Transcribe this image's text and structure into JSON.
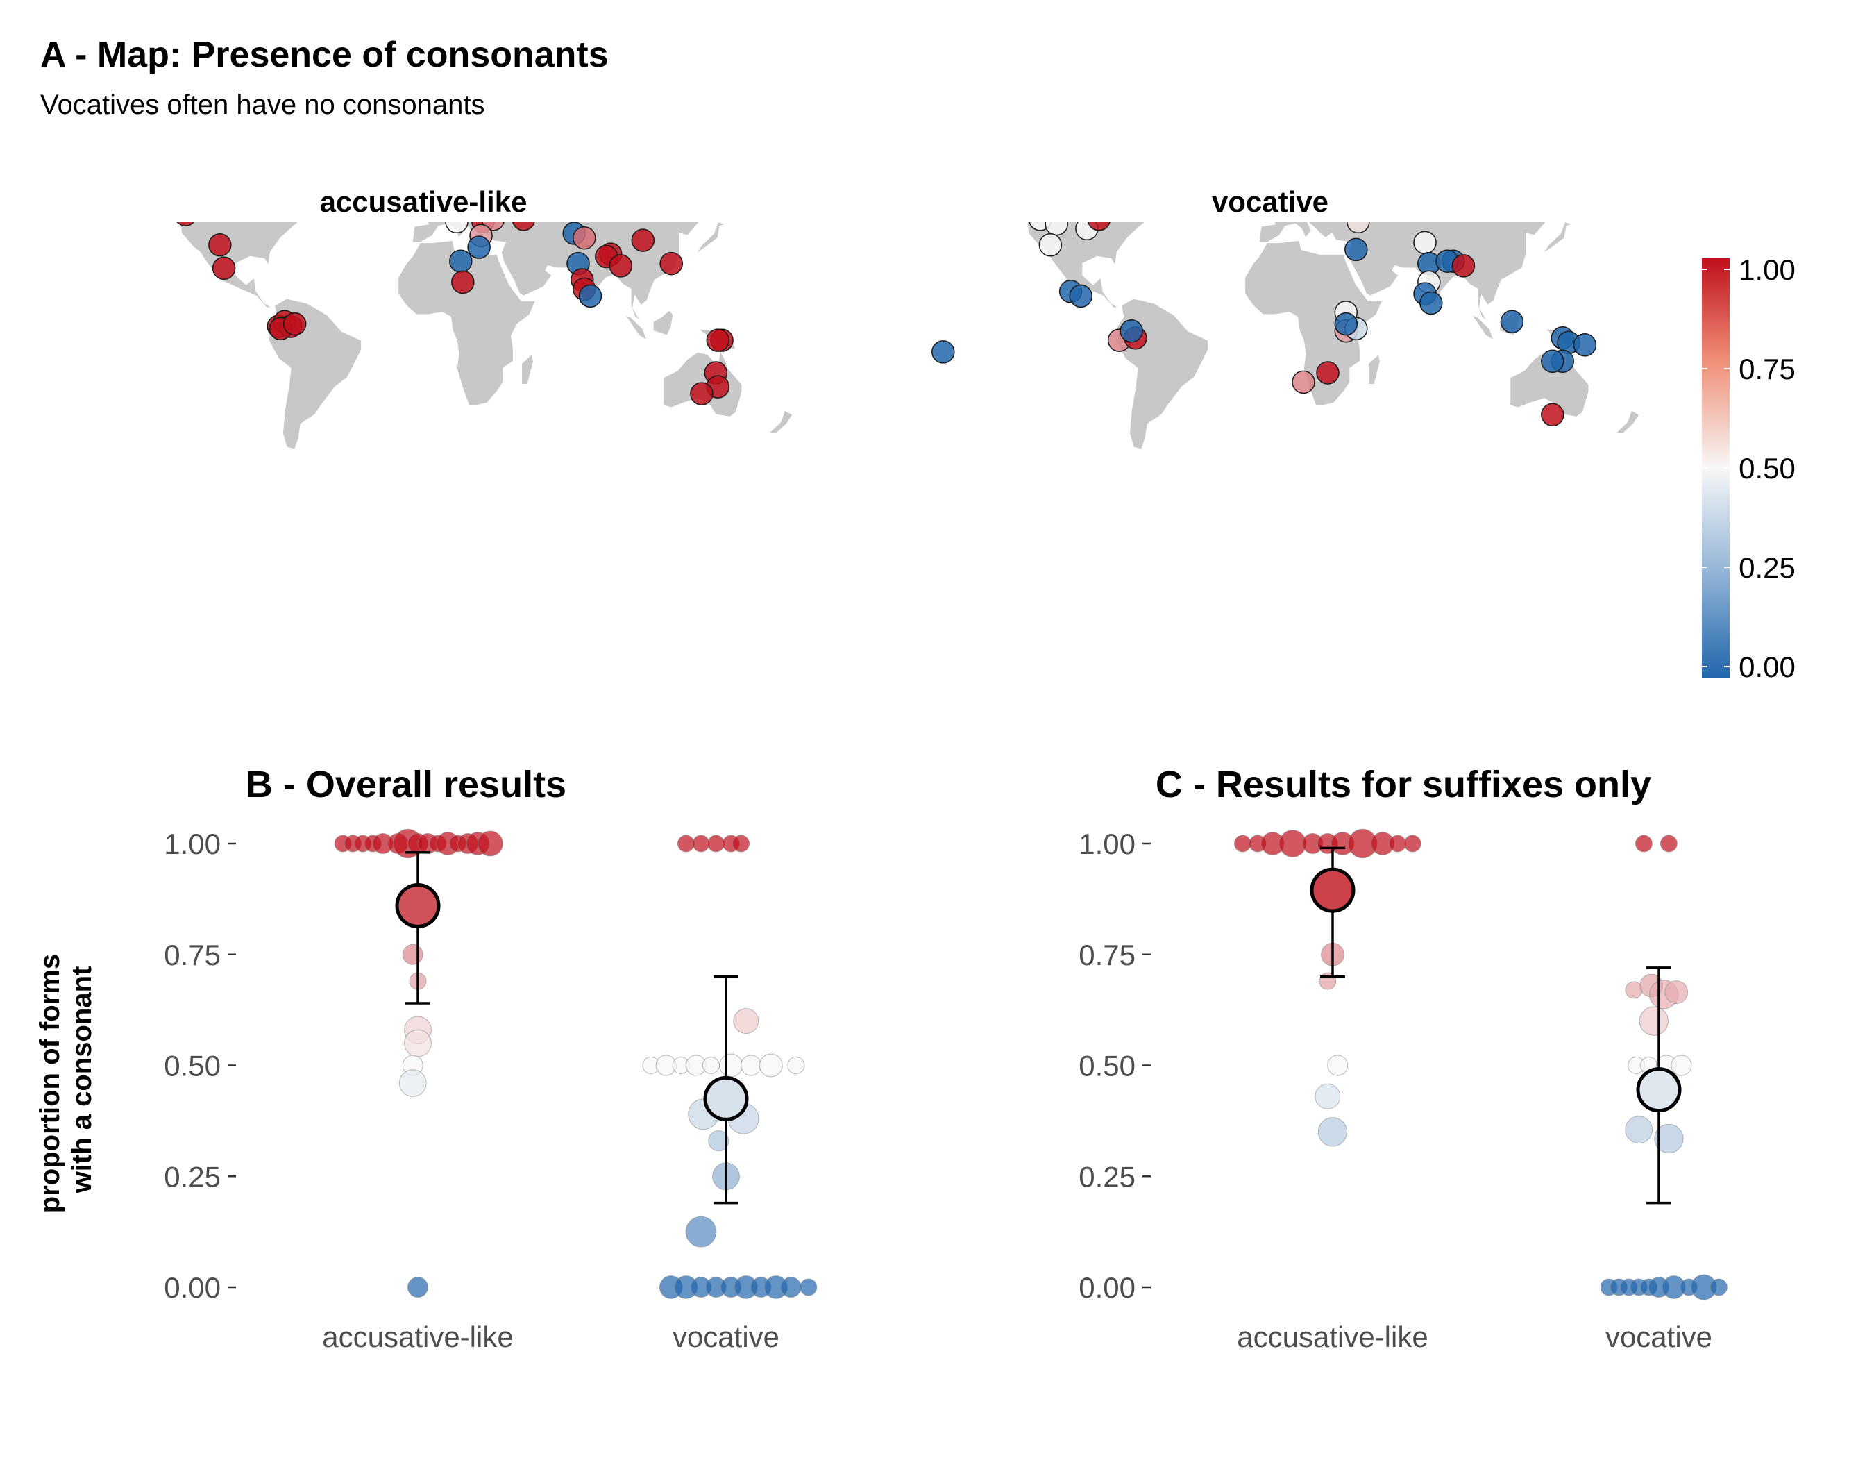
{
  "title": "A - Map: Presence of consonants",
  "subtitle": "Vocatives often have no consonants",
  "colors": {
    "low": "#2166ac",
    "mid": "#f7f7f7",
    "high": "#c0101c",
    "land": "#c8c8c8"
  },
  "legend": {
    "ticks": [
      "1.00",
      "0.75",
      "0.50",
      "0.25",
      "0.00"
    ]
  },
  "chart_data": [
    {
      "type": "scatter",
      "panel": "A",
      "title": "accusative-like",
      "description_kind": "map",
      "points": [
        {
          "lon": -168,
          "lat": 66,
          "v": 1
        },
        {
          "lon": -122,
          "lat": 48,
          "v": 1
        },
        {
          "lon": -105,
          "lat": 35,
          "v": 1
        },
        {
          "lon": -103,
          "lat": 25,
          "v": 1
        },
        {
          "lon": -76,
          "lat": 0,
          "v": 1
        },
        {
          "lon": -73,
          "lat": 2,
          "v": 1
        },
        {
          "lon": -70,
          "lat": 0,
          "v": 1
        },
        {
          "lon": -75,
          "lat": -1,
          "v": 1
        },
        {
          "lon": -68,
          "lat": 1,
          "v": 1
        },
        {
          "lon": 4,
          "lat": 60,
          "v": 0
        },
        {
          "lon": 12,
          "lat": 45,
          "v": 0.5
        },
        {
          "lon": 25,
          "lat": 45,
          "v": 1
        },
        {
          "lon": 30,
          "lat": 46,
          "v": 0.75
        },
        {
          "lon": 24,
          "lat": 39,
          "v": 0.7
        },
        {
          "lon": 23,
          "lat": 34,
          "v": 0
        },
        {
          "lon": 14,
          "lat": 28,
          "v": 0
        },
        {
          "lon": 15,
          "lat": 19,
          "v": 1
        },
        {
          "lon": 45,
          "lat": 46,
          "v": 1
        },
        {
          "lon": 70,
          "lat": 40,
          "v": 0
        },
        {
          "lon": 75,
          "lat": 38,
          "v": 0.8
        },
        {
          "lon": 72,
          "lat": 27,
          "v": 0
        },
        {
          "lon": 74,
          "lat": 20,
          "v": 1
        },
        {
          "lon": 75,
          "lat": 16,
          "v": 1
        },
        {
          "lon": 78,
          "lat": 13,
          "v": 0
        },
        {
          "lon": 88,
          "lat": 31,
          "v": 1
        },
        {
          "lon": 86,
          "lat": 30,
          "v": 1
        },
        {
          "lon": 93,
          "lat": 26,
          "v": 1
        },
        {
          "lon": 104,
          "lat": 37,
          "v": 1
        },
        {
          "lon": 121,
          "lat": 50,
          "v": 1
        },
        {
          "lon": 135,
          "lat": 51,
          "v": 1
        },
        {
          "lon": 140,
          "lat": 56,
          "v": 1
        },
        {
          "lon": 118,
          "lat": 27,
          "v": 1
        },
        {
          "lon": 143,
          "lat": -6,
          "v": 1
        },
        {
          "lon": 141,
          "lat": -6,
          "v": 1
        },
        {
          "lon": 140,
          "lat": -20,
          "v": 1
        },
        {
          "lon": 141,
          "lat": -26,
          "v": 1
        },
        {
          "lon": 133,
          "lat": -29,
          "v": 1
        }
      ]
    },
    {
      "type": "scatter",
      "panel": "A",
      "title": "vocative",
      "description_kind": "map",
      "points": [
        {
          "lon": -166,
          "lat": -11,
          "v": 0
        },
        {
          "lon": -122,
          "lat": 56,
          "v": 1
        },
        {
          "lon": -112,
          "lat": 51,
          "v": 0.5
        },
        {
          "lon": -118,
          "lat": 46,
          "v": 0.5
        },
        {
          "lon": -110,
          "lat": 44,
          "v": 0.5
        },
        {
          "lon": -113,
          "lat": 35,
          "v": 0.5
        },
        {
          "lon": -95,
          "lat": 42,
          "v": 0.5
        },
        {
          "lon": -89,
          "lat": 46,
          "v": 1
        },
        {
          "lon": -103,
          "lat": 15,
          "v": 0
        },
        {
          "lon": -98,
          "lat": 13,
          "v": 0
        },
        {
          "lon": -79,
          "lat": -6,
          "v": 0.75
        },
        {
          "lon": -71,
          "lat": -5,
          "v": 1
        },
        {
          "lon": -73,
          "lat": -2,
          "v": 0
        },
        {
          "lon": 8,
          "lat": 60,
          "v": 0.45
        },
        {
          "lon": 39,
          "lat": 45,
          "v": 0.55
        },
        {
          "lon": 38,
          "lat": 33,
          "v": 0
        },
        {
          "lon": 33,
          "lat": 6,
          "v": 0.5
        },
        {
          "lon": 33,
          "lat": -2,
          "v": 0.7
        },
        {
          "lon": 38,
          "lat": -1,
          "v": 0.4
        },
        {
          "lon": 33,
          "lat": 1,
          "v": 0
        },
        {
          "lon": 24,
          "lat": -20,
          "v": 1
        },
        {
          "lon": 12,
          "lat": -24,
          "v": 0.75
        },
        {
          "lon": 72,
          "lat": 36,
          "v": 0.5
        },
        {
          "lon": 74,
          "lat": 27,
          "v": 0
        },
        {
          "lon": 74,
          "lat": 19,
          "v": 0.5
        },
        {
          "lon": 72,
          "lat": 14,
          "v": 0
        },
        {
          "lon": 75,
          "lat": 10,
          "v": 0
        },
        {
          "lon": 86,
          "lat": 28,
          "v": 0
        },
        {
          "lon": 83,
          "lat": 28,
          "v": 0
        },
        {
          "lon": 91,
          "lat": 26,
          "v": 1
        },
        {
          "lon": 105,
          "lat": 65,
          "v": 0
        },
        {
          "lon": 142,
          "lat": 60,
          "v": 0
        },
        {
          "lon": 139,
          "lat": 54,
          "v": 0
        },
        {
          "lon": 115,
          "lat": 2,
          "v": 0
        },
        {
          "lon": 140,
          "lat": -5,
          "v": 0
        },
        {
          "lon": 143,
          "lat": -7,
          "v": 0
        },
        {
          "lon": 151,
          "lat": -8,
          "v": 0
        },
        {
          "lon": 140,
          "lat": -15,
          "v": 0
        },
        {
          "lon": 135,
          "lat": -15,
          "v": 0
        },
        {
          "lon": 135,
          "lat": -38,
          "v": 1
        }
      ]
    },
    {
      "type": "scatter",
      "panel": "B",
      "title": "B - Overall results",
      "ylabel": [
        "proportion of forms",
        "with a consonant"
      ],
      "categories": [
        "accusative-like",
        "vocative"
      ],
      "ylim": [
        0,
        1
      ],
      "yticks": [
        "0.00",
        "0.25",
        "0.50",
        "0.75",
        "1.00"
      ],
      "summary": [
        {
          "category": "accusative-like",
          "mean": 0.86,
          "lower": 0.64,
          "upper": 0.98
        },
        {
          "category": "vocative",
          "mean": 0.425,
          "lower": 0.19,
          "upper": 0.7
        }
      ],
      "points": [
        {
          "c": 0,
          "dx": -0.3,
          "y": 1.0,
          "n": 1
        },
        {
          "c": 0,
          "dx": -0.26,
          "y": 1.0,
          "n": 1
        },
        {
          "c": 0,
          "dx": -0.22,
          "y": 1.0,
          "n": 1
        },
        {
          "c": 0,
          "dx": -0.18,
          "y": 1.0,
          "n": 1
        },
        {
          "c": 0,
          "dx": -0.14,
          "y": 1.0,
          "n": 2
        },
        {
          "c": 0,
          "dx": -0.08,
          "y": 1.0,
          "n": 2
        },
        {
          "c": 0,
          "dx": -0.04,
          "y": 1.0,
          "n": 6
        },
        {
          "c": 0,
          "dx": 0.0,
          "y": 1.0,
          "n": 2
        },
        {
          "c": 0,
          "dx": 0.04,
          "y": 1.0,
          "n": 2
        },
        {
          "c": 0,
          "dx": 0.08,
          "y": 1.0,
          "n": 1
        },
        {
          "c": 0,
          "dx": 0.12,
          "y": 1.0,
          "n": 3
        },
        {
          "c": 0,
          "dx": 0.16,
          "y": 1.0,
          "n": 1
        },
        {
          "c": 0,
          "dx": 0.2,
          "y": 1.0,
          "n": 2
        },
        {
          "c": 0,
          "dx": 0.24,
          "y": 1.0,
          "n": 3
        },
        {
          "c": 0,
          "dx": 0.29,
          "y": 1.0,
          "n": 4
        },
        {
          "c": 0,
          "dx": -0.02,
          "y": 0.75,
          "n": 2
        },
        {
          "c": 0,
          "dx": 0.0,
          "y": 0.69,
          "n": 1
        },
        {
          "c": 0,
          "dx": 0.0,
          "y": 0.58,
          "n": 5
        },
        {
          "c": 0,
          "dx": 0.0,
          "y": 0.55,
          "n": 5
        },
        {
          "c": 0,
          "dx": -0.02,
          "y": 0.5,
          "n": 2
        },
        {
          "c": 0,
          "dx": -0.02,
          "y": 0.46,
          "n": 5
        },
        {
          "c": 0,
          "dx": 0.0,
          "y": 0.0,
          "n": 2
        },
        {
          "c": 1,
          "dx": -0.16,
          "y": 1.0,
          "n": 1
        },
        {
          "c": 1,
          "dx": -0.1,
          "y": 1.0,
          "n": 1
        },
        {
          "c": 1,
          "dx": -0.04,
          "y": 1.0,
          "n": 1
        },
        {
          "c": 1,
          "dx": 0.02,
          "y": 1.0,
          "n": 1
        },
        {
          "c": 1,
          "dx": 0.06,
          "y": 1.0,
          "n": 1
        },
        {
          "c": 1,
          "dx": 0.08,
          "y": 0.6,
          "n": 4
        },
        {
          "c": 1,
          "dx": -0.3,
          "y": 0.5,
          "n": 1
        },
        {
          "c": 1,
          "dx": -0.24,
          "y": 0.5,
          "n": 2
        },
        {
          "c": 1,
          "dx": -0.18,
          "y": 0.5,
          "n": 1
        },
        {
          "c": 1,
          "dx": -0.12,
          "y": 0.5,
          "n": 2
        },
        {
          "c": 1,
          "dx": -0.06,
          "y": 0.5,
          "n": 1
        },
        {
          "c": 1,
          "dx": 0.02,
          "y": 0.5,
          "n": 3
        },
        {
          "c": 1,
          "dx": 0.1,
          "y": 0.5,
          "n": 2
        },
        {
          "c": 1,
          "dx": 0.18,
          "y": 0.5,
          "n": 3
        },
        {
          "c": 1,
          "dx": 0.28,
          "y": 0.5,
          "n": 1
        },
        {
          "c": 1,
          "dx": -0.09,
          "y": 0.39,
          "n": 7
        },
        {
          "c": 1,
          "dx": 0.07,
          "y": 0.38,
          "n": 7
        },
        {
          "c": 1,
          "dx": -0.03,
          "y": 0.33,
          "n": 2
        },
        {
          "c": 1,
          "dx": 0.0,
          "y": 0.25,
          "n": 5
        },
        {
          "c": 1,
          "dx": -0.1,
          "y": 0.125,
          "n": 7
        },
        {
          "c": 1,
          "dx": -0.22,
          "y": 0.0,
          "n": 3
        },
        {
          "c": 1,
          "dx": -0.16,
          "y": 0.0,
          "n": 3
        },
        {
          "c": 1,
          "dx": -0.1,
          "y": 0.0,
          "n": 2
        },
        {
          "c": 1,
          "dx": -0.04,
          "y": 0.0,
          "n": 2
        },
        {
          "c": 1,
          "dx": 0.02,
          "y": 0.0,
          "n": 2
        },
        {
          "c": 1,
          "dx": 0.08,
          "y": 0.0,
          "n": 3
        },
        {
          "c": 1,
          "dx": 0.14,
          "y": 0.0,
          "n": 2
        },
        {
          "c": 1,
          "dx": 0.2,
          "y": 0.0,
          "n": 3
        },
        {
          "c": 1,
          "dx": 0.26,
          "y": 0.0,
          "n": 2
        },
        {
          "c": 1,
          "dx": 0.33,
          "y": 0.0,
          "n": 1
        }
      ]
    },
    {
      "type": "scatter",
      "panel": "C",
      "title": "C - Results for suffixes only",
      "categories": [
        "accusative-like",
        "vocative"
      ],
      "ylim": [
        0,
        1
      ],
      "yticks": [
        "0.00",
        "0.25",
        "0.50",
        "0.75",
        "1.00"
      ],
      "summary": [
        {
          "category": "accusative-like",
          "mean": 0.895,
          "lower": 0.7,
          "upper": 0.99
        },
        {
          "category": "vocative",
          "mean": 0.445,
          "lower": 0.19,
          "upper": 0.72
        }
      ],
      "points": [
        {
          "c": 0,
          "dx": -0.36,
          "y": 1.0,
          "n": 1
        },
        {
          "c": 0,
          "dx": -0.3,
          "y": 1.0,
          "n": 1
        },
        {
          "c": 0,
          "dx": -0.24,
          "y": 1.0,
          "n": 3
        },
        {
          "c": 0,
          "dx": -0.16,
          "y": 1.0,
          "n": 5
        },
        {
          "c": 0,
          "dx": -0.08,
          "y": 1.0,
          "n": 2
        },
        {
          "c": 0,
          "dx": -0.02,
          "y": 1.0,
          "n": 2
        },
        {
          "c": 0,
          "dx": 0.04,
          "y": 1.0,
          "n": 3
        },
        {
          "c": 0,
          "dx": 0.12,
          "y": 1.0,
          "n": 6
        },
        {
          "c": 0,
          "dx": 0.2,
          "y": 1.0,
          "n": 3
        },
        {
          "c": 0,
          "dx": 0.26,
          "y": 1.0,
          "n": 1
        },
        {
          "c": 0,
          "dx": 0.32,
          "y": 1.0,
          "n": 1
        },
        {
          "c": 0,
          "dx": 0.0,
          "y": 0.75,
          "n": 3
        },
        {
          "c": 0,
          "dx": -0.02,
          "y": 0.69,
          "n": 1
        },
        {
          "c": 0,
          "dx": 0.02,
          "y": 0.5,
          "n": 2
        },
        {
          "c": 0,
          "dx": -0.02,
          "y": 0.43,
          "n": 4
        },
        {
          "c": 0,
          "dx": 0.0,
          "y": 0.35,
          "n": 6
        },
        {
          "c": 1,
          "dx": -0.06,
          "y": 1.0,
          "n": 1
        },
        {
          "c": 1,
          "dx": 0.04,
          "y": 1.0,
          "n": 1
        },
        {
          "c": 1,
          "dx": -0.1,
          "y": 0.67,
          "n": 1
        },
        {
          "c": 1,
          "dx": -0.03,
          "y": 0.68,
          "n": 3
        },
        {
          "c": 1,
          "dx": 0.02,
          "y": 0.66,
          "n": 6
        },
        {
          "c": 1,
          "dx": 0.07,
          "y": 0.665,
          "n": 3
        },
        {
          "c": 1,
          "dx": -0.02,
          "y": 0.6,
          "n": 6
        },
        {
          "c": 1,
          "dx": -0.09,
          "y": 0.5,
          "n": 1
        },
        {
          "c": 1,
          "dx": -0.04,
          "y": 0.5,
          "n": 1
        },
        {
          "c": 1,
          "dx": 0.03,
          "y": 0.5,
          "n": 2
        },
        {
          "c": 1,
          "dx": 0.09,
          "y": 0.5,
          "n": 2
        },
        {
          "c": 1,
          "dx": -0.08,
          "y": 0.355,
          "n": 5
        },
        {
          "c": 1,
          "dx": 0.04,
          "y": 0.335,
          "n": 6
        },
        {
          "c": 1,
          "dx": -0.2,
          "y": 0.0,
          "n": 1
        },
        {
          "c": 1,
          "dx": -0.16,
          "y": 0.0,
          "n": 1
        },
        {
          "c": 1,
          "dx": -0.12,
          "y": 0.0,
          "n": 1
        },
        {
          "c": 1,
          "dx": -0.08,
          "y": 0.0,
          "n": 1
        },
        {
          "c": 1,
          "dx": -0.04,
          "y": 0.0,
          "n": 1
        },
        {
          "c": 1,
          "dx": 0.0,
          "y": 0.0,
          "n": 2
        },
        {
          "c": 1,
          "dx": 0.06,
          "y": 0.0,
          "n": 3
        },
        {
          "c": 1,
          "dx": 0.12,
          "y": 0.0,
          "n": 1
        },
        {
          "c": 1,
          "dx": 0.18,
          "y": 0.0,
          "n": 4
        },
        {
          "c": 1,
          "dx": 0.24,
          "y": 0.0,
          "n": 1
        }
      ]
    }
  ]
}
